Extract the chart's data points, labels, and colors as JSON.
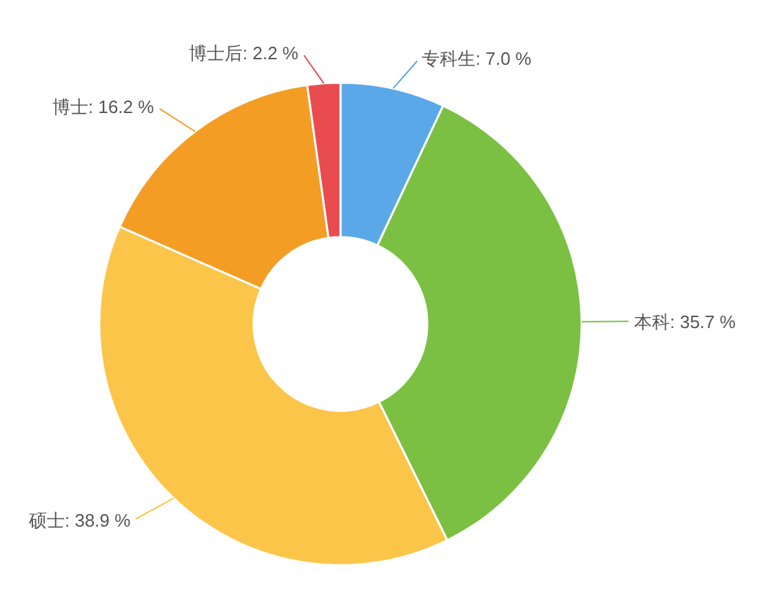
{
  "chart_data": {
    "type": "donut",
    "categories": [
      "专科生",
      "本科",
      "硕士",
      "博士",
      "博士后"
    ],
    "values": [
      7.0,
      35.7,
      38.9,
      16.2,
      2.2
    ],
    "colors": [
      "#5ba8e8",
      "#7bc043",
      "#fbc54a",
      "#f49d25",
      "#e84c4f"
    ],
    "value_labels": [
      "7.0 %",
      "35.7 %",
      "38.9 %",
      "16.2 %",
      "2.2 %"
    ]
  }
}
